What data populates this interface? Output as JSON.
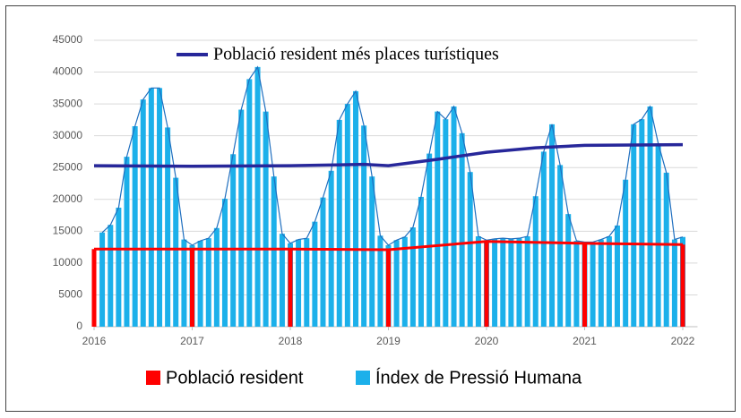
{
  "chart_data": {
    "type": "combo",
    "xlim": [
      2016,
      2022.15
    ],
    "xticks": [
      2016,
      2017,
      2018,
      2019,
      2020,
      2021,
      2022
    ],
    "ylim": [
      0,
      45000
    ],
    "yticks": [
      0,
      5000,
      10000,
      15000,
      20000,
      25000,
      30000,
      35000,
      40000,
      45000
    ],
    "grid": true,
    "legend": "bottom",
    "series": [
      {
        "name": "Índex de Pressió Humana",
        "color": "#1cb0ea",
        "kind": "bar",
        "x": [
          2016.083,
          2016.167,
          2016.25,
          2016.333,
          2016.417,
          2016.5,
          2016.583,
          2016.667,
          2016.75,
          2016.833,
          2016.917,
          2017,
          2017.083,
          2017.167,
          2017.25,
          2017.333,
          2017.417,
          2017.5,
          2017.583,
          2017.667,
          2017.75,
          2017.833,
          2017.917,
          2018,
          2018.083,
          2018.167,
          2018.25,
          2018.333,
          2018.417,
          2018.5,
          2018.583,
          2018.667,
          2018.75,
          2018.833,
          2018.917,
          2019,
          2019.083,
          2019.167,
          2019.25,
          2019.333,
          2019.417,
          2019.5,
          2019.583,
          2019.667,
          2019.75,
          2019.833,
          2019.917,
          2020,
          2020.083,
          2020.167,
          2020.25,
          2020.333,
          2020.417,
          2020.5,
          2020.583,
          2020.667,
          2020.75,
          2020.833,
          2020.917,
          2021,
          2021.083,
          2021.167,
          2021.25,
          2021.333,
          2021.417,
          2021.5,
          2021.583,
          2021.667,
          2021.75,
          2021.833,
          2021.917,
          2022
        ],
        "values": [
          14800,
          16000,
          18700,
          26700,
          31500,
          35700,
          37500,
          37500,
          31300,
          23400,
          13700,
          12800,
          13500,
          13900,
          15500,
          20100,
          27100,
          34100,
          38900,
          40800,
          33800,
          23600,
          14600,
          13100,
          13700,
          13900,
          16500,
          20300,
          24500,
          32500,
          35000,
          37000,
          31600,
          23600,
          14300,
          12800,
          13600,
          14100,
          15600,
          20400,
          27200,
          33800,
          32600,
          34600,
          30400,
          24300,
          14200,
          13600,
          13800,
          13900,
          13800,
          13900,
          14200,
          20500,
          27500,
          31800,
          25400,
          17700,
          13500,
          13300,
          13300,
          13700,
          14200,
          15900,
          23100,
          31800,
          32600,
          34600,
          28800,
          24200,
          13700,
          14100
        ]
      },
      {
        "name": "Població resident",
        "color": "#ff0000",
        "kind": "bar-line",
        "x": [
          2016,
          2017,
          2018,
          2019,
          2020,
          2021,
          2022
        ],
        "values": [
          12200,
          12200,
          12200,
          12100,
          13400,
          13100,
          12900
        ]
      },
      {
        "name": "Població resident més places turístiques",
        "color": "#27279a",
        "kind": "line",
        "x": [
          2016,
          2017,
          2018,
          2018.75,
          2019,
          2019.5,
          2020,
          2020.5,
          2021,
          2022
        ],
        "values": [
          25300,
          25200,
          25300,
          25500,
          25300,
          26300,
          27400,
          28100,
          28500,
          28600
        ]
      }
    ]
  }
}
